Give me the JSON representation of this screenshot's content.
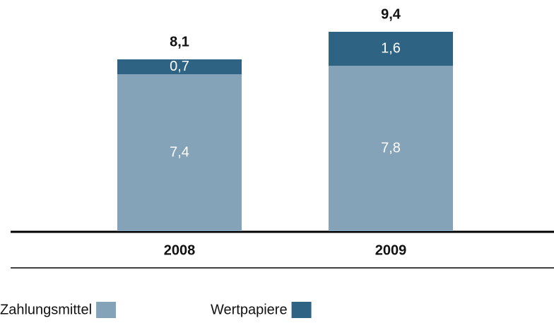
{
  "chart_data": {
    "type": "stacked_bar",
    "categories": [
      "2008",
      "2009"
    ],
    "series": [
      {
        "name": "Zahlungsmittel",
        "color": "#84a3b8",
        "values": [
          7.4,
          7.8
        ],
        "value_labels": [
          "7,4",
          "7,8"
        ]
      },
      {
        "name": "Wertpapiere",
        "color": "#2f6384",
        "values": [
          0.7,
          1.6
        ],
        "value_labels": [
          "0,7",
          "1,6"
        ]
      }
    ],
    "totals": [
      8.1,
      9.4
    ],
    "total_labels": [
      "8,1",
      "9,4"
    ]
  }
}
